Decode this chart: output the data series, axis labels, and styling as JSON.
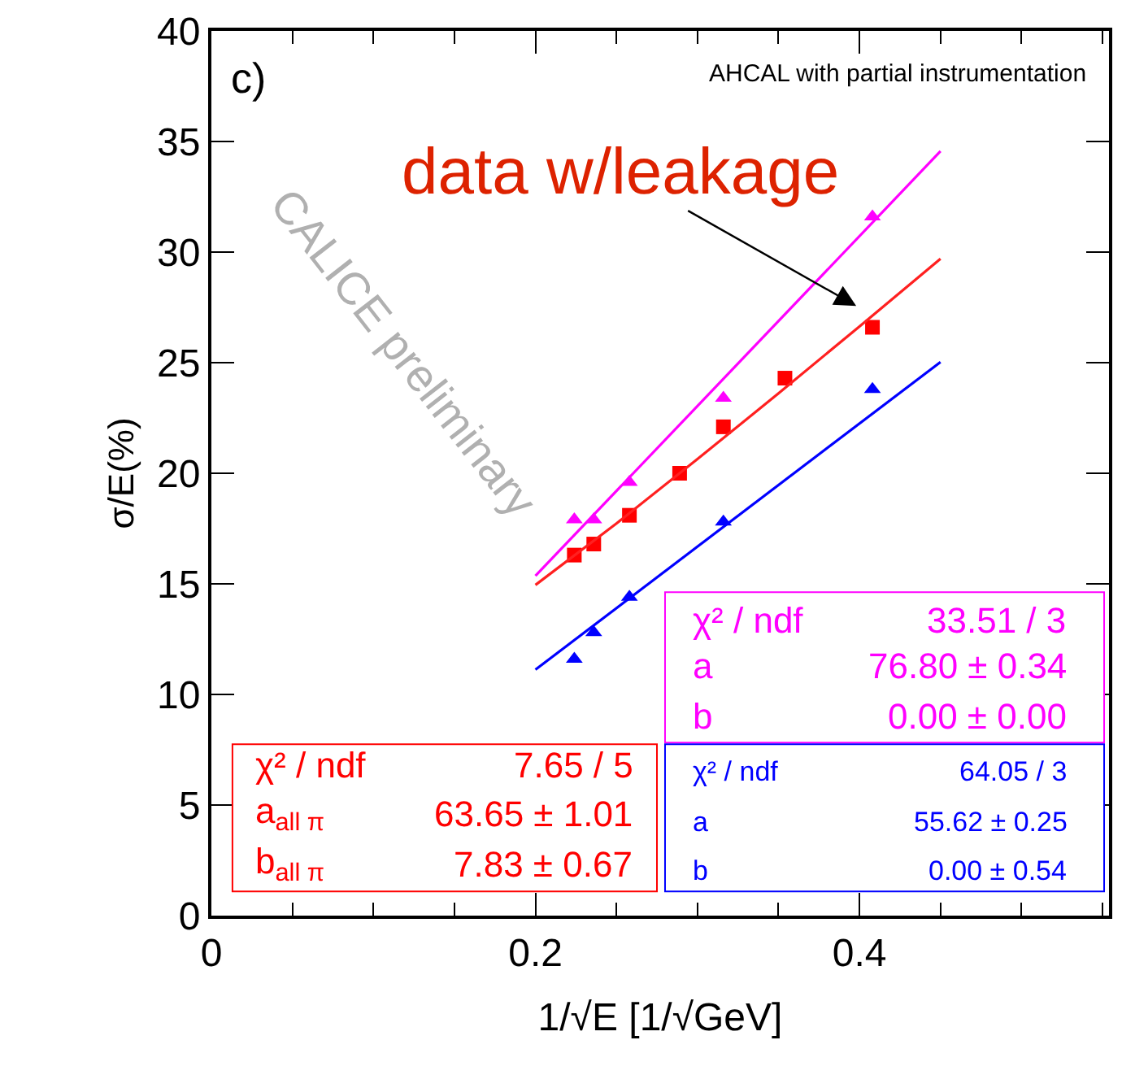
{
  "chart_data": {
    "type": "scatter",
    "xlabel": "1/√E [1/√GeV]",
    "ylabel": "σ/E(%)",
    "xlim": [
      0,
      0.554
    ],
    "ylim": [
      0,
      40
    ],
    "xticks": [
      0,
      {
        "value": 0.05,
        "label": null
      },
      {
        "value": 0.1,
        "label": null
      },
      {
        "value": 0.15,
        "label": null
      },
      {
        "value": 0.2,
        "label": "0.2"
      },
      {
        "value": 0.25,
        "label": null
      },
      {
        "value": 0.3,
        "label": null
      },
      {
        "value": 0.35,
        "label": null
      },
      {
        "value": 0.4,
        "label": "0.4"
      },
      {
        "value": 0.45,
        "label": null
      },
      {
        "value": 0.5,
        "label": null
      },
      {
        "value": 0.55,
        "label": null
      }
    ],
    "yticks": [
      0,
      5,
      10,
      15,
      20,
      25,
      30,
      35,
      40
    ],
    "series": [
      {
        "marker": "square",
        "color": "#ff0000",
        "x": [
          0.224,
          0.236,
          0.258,
          0.289,
          0.316,
          0.354,
          0.408
        ],
        "values": [
          16.3,
          16.8,
          18.1,
          20.0,
          22.1,
          24.3,
          26.6
        ]
      },
      {
        "marker": "triangle",
        "color": "#ff00ff",
        "x": [
          0.224,
          0.236,
          0.258,
          0.316,
          0.408
        ],
        "values": [
          17.9,
          17.9,
          19.6,
          23.4,
          31.6
        ]
      },
      {
        "marker": "triangle",
        "color": "#0000ff",
        "x": [
          0.224,
          0.236,
          0.258,
          0.316,
          0.408
        ],
        "values": [
          11.6,
          12.8,
          14.4,
          17.8,
          23.8
        ]
      },
      {
        "type": "line",
        "marker": "none",
        "line_style": "solid",
        "color": "#ff2020",
        "x": [
          0.2,
          0.25,
          0.3,
          0.35,
          0.4,
          0.45
        ],
        "values": [
          14.95,
          17.73,
          20.64,
          23.61,
          26.64,
          29.7
        ]
      },
      {
        "type": "line",
        "marker": "none",
        "line_style": "solid",
        "color": "#ff00ff",
        "x": [
          0.2,
          0.45
        ],
        "values": [
          15.36,
          34.56
        ]
      },
      {
        "type": "line",
        "marker": "none",
        "line_style": "solid",
        "color": "#0000ff",
        "x": [
          0.2,
          0.45
        ],
        "values": [
          11.12,
          25.03
        ]
      }
    ],
    "annotations": [
      "c)",
      "AHCAL with partial instrumentation",
      "CALICE preliminary",
      "data w/leakage",
      "χ² / ndf",
      "33.51 / 3",
      "a",
      "76.80 ± 0.34",
      "b",
      "0.00 ± 0.00",
      "χ² / ndf",
      "7.65 / 5",
      "a$_{all π}$",
      "63.65 ± 1.01",
      "b$_{all π}$",
      "7.83 ± 0.67",
      "χ² / ndf",
      "64.05 / 3",
      "a",
      "55.62 ± 0.25",
      "b",
      "0.00 ± 0.54"
    ]
  }
}
